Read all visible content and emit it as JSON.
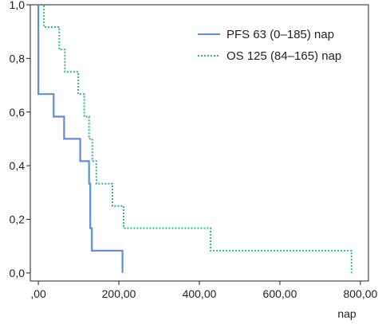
{
  "chart_data": {
    "type": "line",
    "subtype": "kaplan-meier-step",
    "title": "",
    "xlabel": "nap",
    "ylabel": "",
    "xlim": [
      -20,
      820
    ],
    "ylim": [
      -0.03,
      1.0
    ],
    "x_ticks": [
      0,
      200,
      400,
      600,
      800
    ],
    "x_tick_labels": [
      ",00",
      "200,00",
      "400,00",
      "600,00",
      "800,00"
    ],
    "y_ticks": [
      0,
      0.2,
      0.4,
      0.6,
      0.8,
      1.0
    ],
    "y_tick_labels": [
      "0,0",
      "0,2",
      "0,4",
      "0,6",
      "0,8",
      "1,0"
    ],
    "grid": false,
    "legend_position": "top-right",
    "series": [
      {
        "name": "PFS 63 (0–185) nap",
        "color": "#5b8fd6",
        "line_style": "solid",
        "points": [
          [
            0,
            1.0
          ],
          [
            0,
            0.667
          ],
          [
            38,
            0.667
          ],
          [
            38,
            0.583
          ],
          [
            64,
            0.583
          ],
          [
            64,
            0.5
          ],
          [
            104,
            0.5
          ],
          [
            104,
            0.417
          ],
          [
            126,
            0.417
          ],
          [
            126,
            0.333
          ],
          [
            129,
            0.333
          ],
          [
            129,
            0.167
          ],
          [
            133,
            0.167
          ],
          [
            133,
            0.083
          ],
          [
            209,
            0.083
          ],
          [
            209,
            0.0
          ]
        ]
      },
      {
        "name": "OS 125 (84–165) nap",
        "color": "#2bb3a0",
        "line_style": "dotted",
        "points": [
          [
            8,
            1.0
          ],
          [
            14,
            1.0
          ],
          [
            14,
            0.917
          ],
          [
            52,
            0.917
          ],
          [
            52,
            0.833
          ],
          [
            66,
            0.833
          ],
          [
            66,
            0.75
          ],
          [
            99,
            0.75
          ],
          [
            99,
            0.667
          ],
          [
            114,
            0.667
          ],
          [
            114,
            0.583
          ],
          [
            126,
            0.583
          ],
          [
            126,
            0.5
          ],
          [
            134,
            0.5
          ],
          [
            134,
            0.417
          ],
          [
            144,
            0.417
          ],
          [
            144,
            0.333
          ],
          [
            184,
            0.333
          ],
          [
            184,
            0.25
          ],
          [
            212,
            0.25
          ],
          [
            212,
            0.167
          ],
          [
            428,
            0.167
          ],
          [
            428,
            0.083
          ],
          [
            778,
            0.083
          ],
          [
            778,
            0.0
          ]
        ]
      }
    ]
  }
}
